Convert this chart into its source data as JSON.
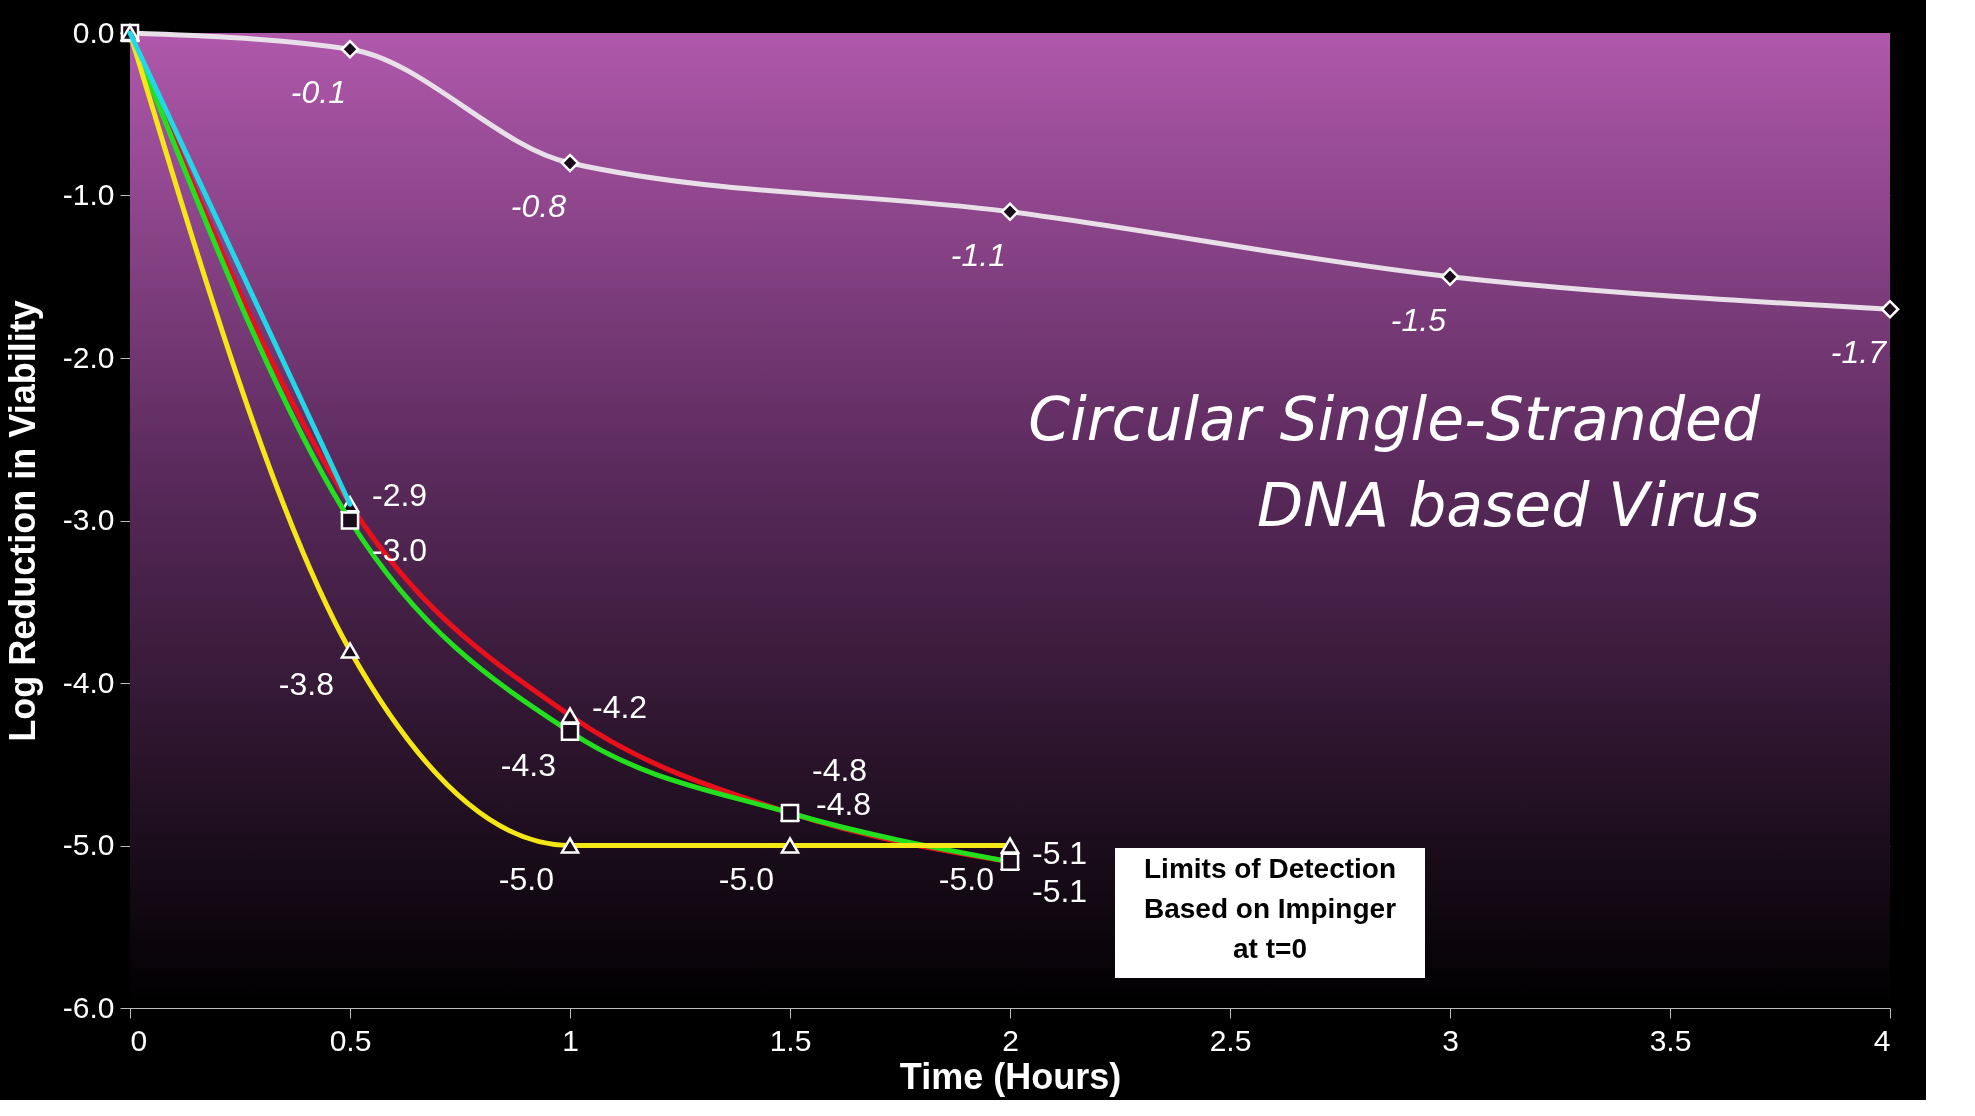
{
  "chart_data": {
    "type": "line",
    "title": "Circular Single-Stranded\nDNA based Virus",
    "xlabel": "Time (Hours)",
    "ylabel": "Log Reduction in Viability",
    "x": [
      0,
      0.5,
      1,
      1.5,
      2
    ],
    "series": [
      {
        "color": "#e8dfe8",
        "marker": "diamond",
        "x": [
          0,
          0.5,
          1,
          2,
          3,
          4
        ],
        "values": [
          0,
          -0.1,
          -0.8,
          -1.1,
          -1.5,
          -1.7
        ],
        "value_labels": [
          null,
          "-0.1",
          "-0.8",
          "-1.1",
          "-1.5",
          "-1.7"
        ]
      },
      {
        "color": "#e8101a",
        "marker": "triangle",
        "values": [
          0,
          -2.9,
          -4.2,
          -4.8,
          -5.1
        ],
        "value_labels": [
          null,
          "-2.9",
          "-4.2",
          "-4.8",
          "-5.1"
        ]
      },
      {
        "color": "#22e01e",
        "marker": "square",
        "values": [
          0,
          -3.0,
          -4.3,
          -4.8,
          -5.1
        ],
        "value_labels": [
          null,
          "-3.0",
          "-4.3",
          "-4.8",
          "-5.1"
        ]
      },
      {
        "color": "#f5e616",
        "marker": "triangle",
        "values": [
          0,
          -3.8,
          -5.0,
          -5.0,
          -5.0
        ],
        "value_labels": [
          null,
          "-3.8",
          "-5.0",
          "-5.0",
          "-5.0"
        ]
      },
      {
        "color": "#20d8e8",
        "marker": "none",
        "x": [
          0,
          0.5
        ],
        "values": [
          0,
          -2.9
        ]
      }
    ],
    "xlim": [
      0,
      4
    ],
    "xticks": [
      0,
      0.5,
      1,
      1.5,
      2,
      2.5,
      3,
      3.5,
      4
    ],
    "ylim": [
      -6,
      0
    ],
    "yticks": [
      {
        "value": -6,
        "label": "-6.0"
      },
      {
        "value": -5,
        "label": "-5.0"
      },
      {
        "value": -4,
        "label": "-4.0"
      },
      {
        "value": -3,
        "label": "-3.0"
      },
      {
        "value": -2,
        "label": "-2.0"
      },
      {
        "value": -1,
        "label": "-1.0"
      },
      {
        "value": 0,
        "label": "0.0"
      }
    ],
    "grid": "y",
    "line_style": "solid",
    "annotations": [
      "Limits of Detection\nBased on Impinger\nat t=0"
    ]
  }
}
